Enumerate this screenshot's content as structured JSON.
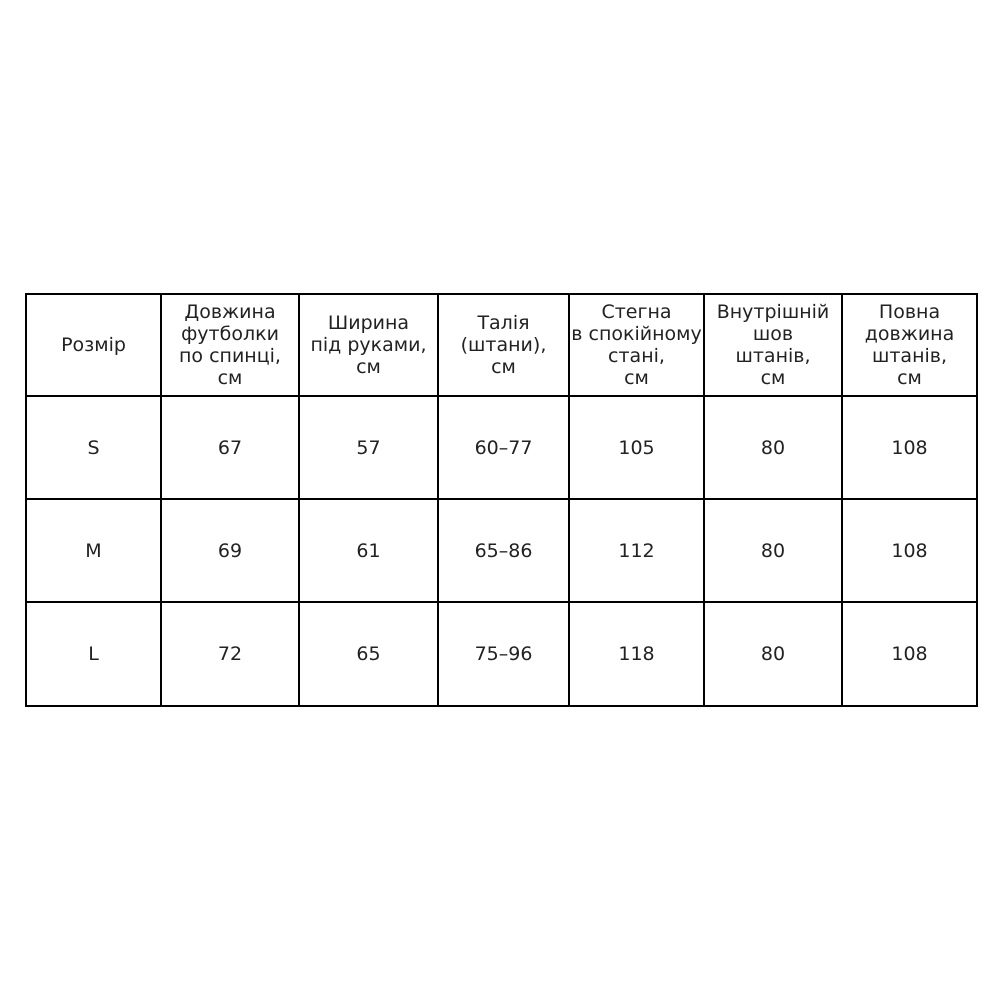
{
  "chart_data": {
    "type": "table",
    "title": "",
    "headers": [
      "Розмір",
      "Довжина\nфутболки\nпо спинці,\nсм",
      "Ширина\nпід руками,\nсм",
      "Талія\n(штани),\nсм",
      "Стегна\nв спокійному\nстані,\nсм",
      "Внутрішній\nшов\nштанів,\nсм",
      "Повна\nдовжина\nштанів,\nсм"
    ],
    "rows": [
      [
        "S",
        "67",
        "57",
        "60–77",
        "105",
        "80",
        "108"
      ],
      [
        "M",
        "69",
        "61",
        "65–86",
        "112",
        "80",
        "108"
      ],
      [
        "L",
        "72",
        "65",
        "75–96",
        "118",
        "80",
        "108"
      ]
    ]
  },
  "colors": {
    "border": "#000000",
    "text": "#222222",
    "background": "#ffffff"
  }
}
